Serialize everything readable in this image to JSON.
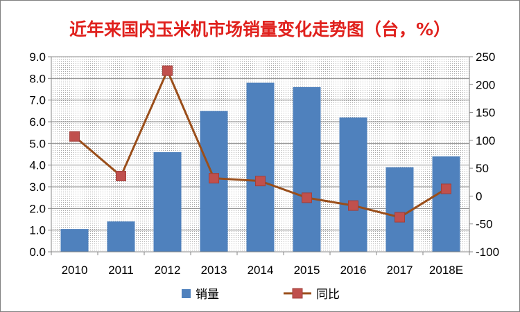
{
  "chart_data": {
    "type": "bar",
    "title": "近年来国内玉米机市场销量变化走势图（台，%）",
    "categories": [
      "2010",
      "2011",
      "2012",
      "2013",
      "2014",
      "2015",
      "2016",
      "2017",
      "2018E"
    ],
    "series": [
      {
        "name": "销量",
        "type": "bar",
        "axis": "left",
        "color": "#4f81bd",
        "values": [
          1.05,
          1.4,
          4.6,
          6.5,
          7.8,
          7.6,
          6.2,
          3.9,
          4.4
        ]
      },
      {
        "name": "同比",
        "type": "line",
        "axis": "right",
        "color": "#c0504d",
        "line_color": "#9a4e1a",
        "values": [
          107,
          36,
          225,
          32,
          27,
          -3,
          -17,
          -38,
          13
        ]
      }
    ],
    "y_left": {
      "min": 0,
      "max": 9,
      "step": 1,
      "tick_labels": [
        "0.0",
        "1.0",
        "2.0",
        "3.0",
        "4.0",
        "5.0",
        "6.0",
        "7.0",
        "8.0",
        "9.0"
      ]
    },
    "y_right": {
      "min": -100,
      "max": 250,
      "step": 50,
      "tick_labels": [
        "-100",
        "-50",
        "0",
        "50",
        "100",
        "150",
        "200",
        "250"
      ]
    },
    "grid": true,
    "legend": "bottom"
  }
}
